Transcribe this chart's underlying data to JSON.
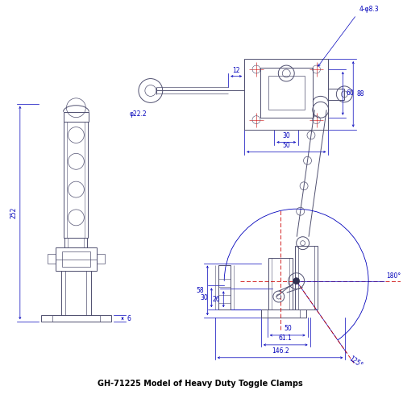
{
  "bg_color": "#ffffff",
  "dim_color": "#0000bb",
  "line_color": "#505070",
  "line_color2": "#303050",
  "red_color": "#cc0000",
  "title": "GH-71225 Model of Heavy Duty Toggle Clamps",
  "title_color": "#000000",
  "title_fontsize": 7.0,
  "top_view": {
    "dim_4holes": "4-φ8.3",
    "dim_12": "12",
    "dim_phi22": "φ22.2",
    "dim_30": "30",
    "dim_50": "50",
    "dim_60": "60",
    "dim_88": "88"
  },
  "front_view": {
    "dim_252": "252",
    "dim_6": "6"
  },
  "side_view": {
    "dim_30": "30",
    "dim_26": "26",
    "dim_58": "58",
    "dim_50": "50",
    "dim_61": "61.1",
    "dim_146": "146.2",
    "dim_180": "180°",
    "dim_125": "125°"
  }
}
